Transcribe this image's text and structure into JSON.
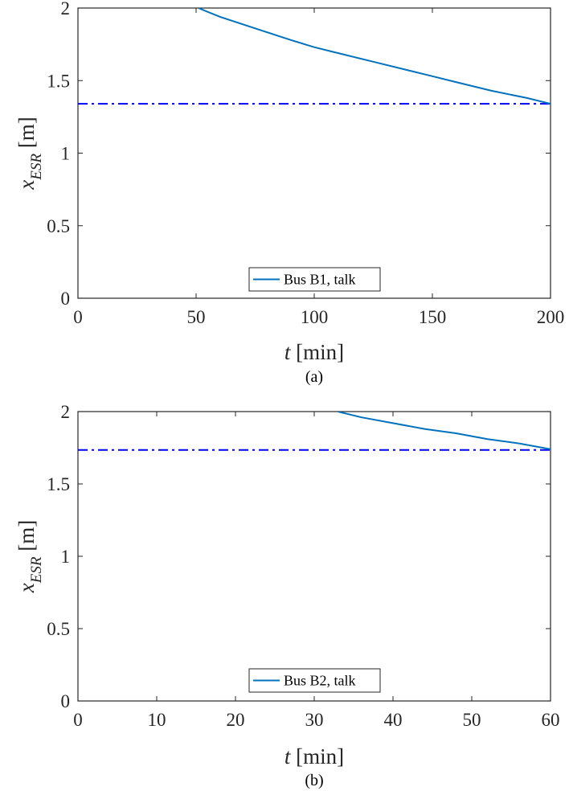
{
  "chart_data": [
    {
      "type": "line",
      "panel_label": "(a)",
      "xlabel_italic": "t",
      "xlabel_unit": "[min]",
      "ylabel_main": "x",
      "ylabel_sub": "ESR",
      "ylabel_unit": "[m]",
      "xlim": [
        0,
        200
      ],
      "ylim": [
        0,
        2
      ],
      "xticks": [
        "0",
        "50",
        "100",
        "150",
        "200"
      ],
      "yticks": [
        "0",
        "0.5",
        "1",
        "1.5",
        "2"
      ],
      "legend": "Bus B1, talk",
      "legend_position": "bottom-center",
      "grid": false,
      "series_color": "#0072BD",
      "reference_color": "#0000FF",
      "series": [
        {
          "name": "Bus B1, talk",
          "x": [
            51,
            60,
            75,
            90,
            100,
            110,
            125,
            140,
            150,
            160,
            175,
            190,
            200
          ],
          "y": [
            2.0,
            1.94,
            1.86,
            1.78,
            1.73,
            1.69,
            1.63,
            1.57,
            1.53,
            1.49,
            1.43,
            1.38,
            1.34
          ]
        }
      ],
      "reference_line": {
        "y": 1.34,
        "style": "dash-dot"
      }
    },
    {
      "type": "line",
      "panel_label": "(b)",
      "xlabel_italic": "t",
      "xlabel_unit": "[min]",
      "ylabel_main": "x",
      "ylabel_sub": "ESR",
      "ylabel_unit": "[m]",
      "xlim": [
        0,
        60
      ],
      "ylim": [
        0,
        2
      ],
      "xticks": [
        "0",
        "10",
        "20",
        "30",
        "40",
        "50",
        "60"
      ],
      "yticks": [
        "0",
        "0.5",
        "1",
        "1.5",
        "2"
      ],
      "legend": "Bus B2, talk",
      "legend_position": "bottom-center",
      "grid": false,
      "series_color": "#0072BD",
      "reference_color": "#0000FF",
      "series": [
        {
          "name": "Bus B2, talk",
          "x": [
            33,
            36,
            40,
            44,
            48,
            52,
            56,
            60
          ],
          "y": [
            2.0,
            1.96,
            1.92,
            1.88,
            1.85,
            1.81,
            1.78,
            1.74
          ]
        }
      ],
      "reference_line": {
        "y": 1.735,
        "style": "dash-dot"
      }
    }
  ]
}
